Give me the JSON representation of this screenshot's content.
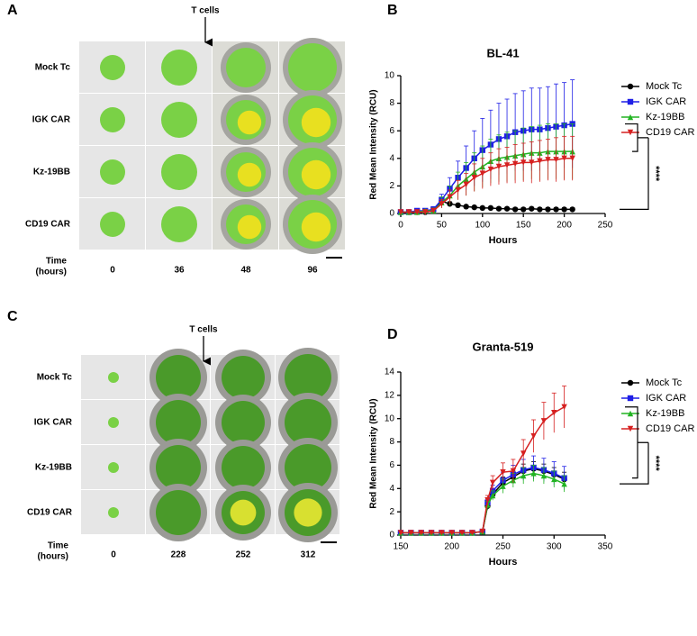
{
  "panels": {
    "letters": [
      "A",
      "B",
      "C",
      "D"
    ],
    "arrow_label": "T cells",
    "rows": [
      "Mock Tc",
      "IGK CAR",
      "Kz-19BB",
      "CD19 CAR"
    ],
    "time_label": "Time\n(hours)",
    "times_a": [
      "0",
      "36",
      "48",
      "96"
    ],
    "times_c": [
      "0",
      "228",
      "252",
      "312"
    ]
  },
  "chart_data": [
    {
      "type": "line",
      "title": "BL-41",
      "xlabel": "Hours",
      "ylabel": "Red Mean Intensity (RCU)",
      "annotation": "****",
      "legend": "right",
      "x": [
        0,
        10,
        20,
        30,
        40,
        50,
        60,
        70,
        80,
        90,
        100,
        110,
        120,
        130,
        140,
        150,
        160,
        170,
        180,
        190,
        200,
        210
      ],
      "xlim": [
        0,
        250
      ],
      "xticks": [
        0,
        50,
        100,
        150,
        200,
        250
      ],
      "ylim": [
        0,
        10
      ],
      "yticks": [
        0,
        2,
        4,
        6,
        8,
        10
      ],
      "series": [
        {
          "name": "Mock Tc",
          "color": "#000000",
          "marker": "circle",
          "values": [
            0.1,
            0.1,
            0.1,
            0.1,
            0.2,
            0.9,
            0.7,
            0.6,
            0.5,
            0.45,
            0.4,
            0.4,
            0.35,
            0.35,
            0.3,
            0.3,
            0.35,
            0.3,
            0.3,
            0.3,
            0.3,
            0.3
          ],
          "errors": [
            0.05,
            0.05,
            0.05,
            0.05,
            0.1,
            0.2,
            0.15,
            0.1,
            0.1,
            0.1,
            0.1,
            0.1,
            0.1,
            0.1,
            0.1,
            0.1,
            0.1,
            0.1,
            0.1,
            0.1,
            0.1,
            0.1
          ]
        },
        {
          "name": "IGK CAR",
          "color": "#1f1fe6",
          "marker": "square",
          "values": [
            0.1,
            0.1,
            0.2,
            0.2,
            0.3,
            1.0,
            1.8,
            2.6,
            3.3,
            4.0,
            4.6,
            5.0,
            5.4,
            5.6,
            5.9,
            6.0,
            6.1,
            6.1,
            6.2,
            6.3,
            6.4,
            6.5
          ],
          "errors": [
            0.1,
            0.1,
            0.1,
            0.1,
            0.2,
            0.4,
            0.8,
            1.2,
            1.6,
            2.0,
            2.3,
            2.5,
            2.6,
            2.7,
            2.8,
            2.9,
            3.0,
            3.0,
            3.0,
            3.1,
            3.1,
            3.2
          ]
        },
        {
          "name": "Kz-19BB",
          "color": "#22b422",
          "marker": "triangle",
          "values": [
            0.1,
            0.1,
            0.1,
            0.2,
            0.2,
            0.8,
            1.3,
            2.0,
            2.5,
            3.0,
            3.4,
            3.8,
            4.0,
            4.1,
            4.2,
            4.3,
            4.4,
            4.4,
            4.5,
            4.5,
            4.5,
            4.5
          ],
          "errors": [
            0.1,
            0.1,
            0.1,
            0.1,
            0.2,
            0.4,
            0.7,
            1.0,
            1.2,
            1.4,
            1.5,
            1.6,
            1.7,
            1.8,
            1.8,
            1.9,
            1.9,
            2.0,
            2.0,
            2.0,
            2.0,
            2.0
          ]
        },
        {
          "name": "CD19 CAR",
          "color": "#d62020",
          "marker": "tri-down",
          "values": [
            0.1,
            0.1,
            0.1,
            0.1,
            0.2,
            0.7,
            1.2,
            1.7,
            2.1,
            2.6,
            2.9,
            3.2,
            3.4,
            3.5,
            3.6,
            3.7,
            3.7,
            3.8,
            3.9,
            3.9,
            4.0,
            4.0
          ],
          "errors": [
            0.1,
            0.1,
            0.1,
            0.1,
            0.1,
            0.3,
            0.5,
            0.7,
            0.8,
            1.0,
            1.1,
            1.2,
            1.3,
            1.3,
            1.4,
            1.4,
            1.5,
            1.5,
            1.5,
            1.6,
            1.6,
            1.6
          ]
        }
      ]
    },
    {
      "type": "line",
      "title": "Granta-519",
      "xlabel": "Hours",
      "ylabel": "Red Mean Intensity (RCU)",
      "annotation": "****",
      "legend": "right",
      "x": [
        150,
        160,
        170,
        180,
        190,
        200,
        210,
        220,
        230,
        235,
        240,
        250,
        260,
        270,
        280,
        290,
        300,
        310
      ],
      "xlim": [
        150,
        350
      ],
      "xticks": [
        150,
        200,
        250,
        300,
        350
      ],
      "ylim": [
        0,
        14
      ],
      "yticks": [
        0,
        2,
        4,
        6,
        8,
        10,
        12,
        14
      ],
      "series": [
        {
          "name": "Mock Tc",
          "color": "#000000",
          "marker": "circle",
          "values": [
            0.2,
            0.2,
            0.2,
            0.2,
            0.2,
            0.2,
            0.2,
            0.2,
            0.3,
            2.5,
            3.5,
            4.5,
            5.0,
            5.5,
            5.7,
            5.5,
            5.2,
            4.8
          ],
          "errors": [
            0.1,
            0.1,
            0.1,
            0.1,
            0.1,
            0.1,
            0.1,
            0.1,
            0.1,
            0.3,
            0.4,
            0.5,
            0.5,
            0.6,
            0.6,
            0.6,
            0.6,
            0.6
          ]
        },
        {
          "name": "IGK CAR",
          "color": "#1f1fe6",
          "marker": "square",
          "values": [
            0.2,
            0.2,
            0.2,
            0.2,
            0.2,
            0.2,
            0.2,
            0.2,
            0.3,
            2.8,
            3.8,
            4.7,
            5.2,
            5.6,
            5.8,
            5.6,
            5.3,
            4.9
          ],
          "errors": [
            0.1,
            0.1,
            0.1,
            0.1,
            0.1,
            0.1,
            0.1,
            0.1,
            0.1,
            0.3,
            0.5,
            0.7,
            0.8,
            0.9,
            1.0,
            1.0,
            1.0,
            1.0
          ]
        },
        {
          "name": "Kz-19BB",
          "color": "#22b422",
          "marker": "triangle",
          "values": [
            0.2,
            0.2,
            0.2,
            0.2,
            0.2,
            0.2,
            0.2,
            0.2,
            0.3,
            2.6,
            3.4,
            4.2,
            4.7,
            5.1,
            5.3,
            5.1,
            4.8,
            4.4
          ],
          "errors": [
            0.1,
            0.1,
            0.1,
            0.1,
            0.1,
            0.1,
            0.1,
            0.1,
            0.1,
            0.3,
            0.4,
            0.6,
            0.6,
            0.7,
            0.7,
            0.7,
            0.7,
            0.7
          ]
        },
        {
          "name": "CD19 CAR",
          "color": "#d62020",
          "marker": "tri-down",
          "values": [
            0.2,
            0.2,
            0.2,
            0.2,
            0.2,
            0.2,
            0.2,
            0.2,
            0.3,
            3.0,
            4.5,
            5.4,
            5.5,
            7.0,
            8.5,
            9.8,
            10.5,
            11.0
          ],
          "errors": [
            0.1,
            0.1,
            0.1,
            0.1,
            0.1,
            0.1,
            0.1,
            0.1,
            0.1,
            0.4,
            0.6,
            0.8,
            1.0,
            1.2,
            1.4,
            1.6,
            1.7,
            1.8
          ]
        }
      ]
    }
  ]
}
